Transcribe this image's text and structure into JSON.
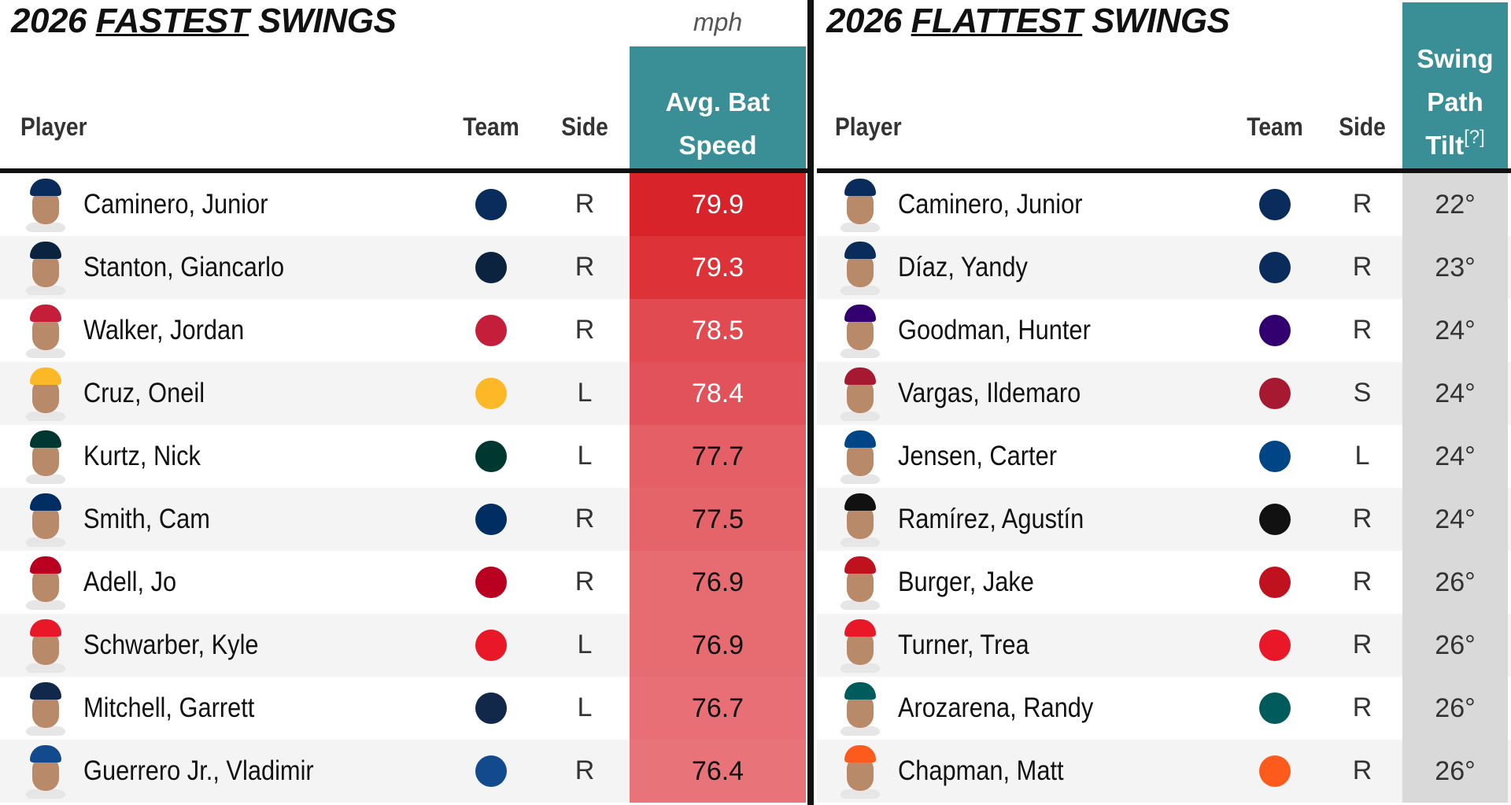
{
  "left": {
    "title": {
      "pre": "2026",
      "em": "FASTEST",
      "post": "SWINGS"
    },
    "unit": "mph",
    "columns": [
      "Player",
      "Team",
      "Side",
      "Avg. Bat Speed"
    ],
    "rows": [
      {
        "player": "Caminero, Junior",
        "team_color": "#092c5c",
        "side": "R",
        "value": "79.9",
        "cell_color": "#d8232a",
        "text_color": "#ffffff"
      },
      {
        "player": "Stanton, Giancarlo",
        "team_color": "#0c2340",
        "side": "R",
        "value": "79.3",
        "cell_color": "#dc3238",
        "text_color": "#ffffff"
      },
      {
        "player": "Walker, Jordan",
        "team_color": "#c41e3a",
        "side": "R",
        "value": "78.5",
        "cell_color": "#e04a50",
        "text_color": "#ffffff"
      },
      {
        "player": "Cruz, Oneil",
        "team_color": "#fdb827",
        "side": "L",
        "value": "78.4",
        "cell_color": "#e1525a",
        "text_color": "#ffffff"
      },
      {
        "player": "Kurtz, Nick",
        "team_color": "#003831",
        "side": "L",
        "value": "77.7",
        "cell_color": "#e45f66",
        "text_color": "#111111"
      },
      {
        "player": "Smith, Cam",
        "team_color": "#002d62",
        "side": "R",
        "value": "77.5",
        "cell_color": "#e5646a",
        "text_color": "#111111"
      },
      {
        "player": "Adell, Jo",
        "team_color": "#ba0021",
        "side": "R",
        "value": "76.9",
        "cell_color": "#e66c72",
        "text_color": "#111111"
      },
      {
        "player": "Schwarber, Kyle",
        "team_color": "#e81828",
        "side": "L",
        "value": "76.9",
        "cell_color": "#e66c72",
        "text_color": "#111111"
      },
      {
        "player": "Mitchell, Garrett",
        "team_color": "#12284b",
        "side": "L",
        "value": "76.7",
        "cell_color": "#e76f75",
        "text_color": "#111111"
      },
      {
        "player": "Guerrero Jr., Vladimir",
        "team_color": "#134a8e",
        "side": "R",
        "value": "76.4",
        "cell_color": "#e87379",
        "text_color": "#111111"
      }
    ]
  },
  "right": {
    "title": {
      "pre": "2026",
      "em": "FLATTEST",
      "post": "SWINGS"
    },
    "columns": [
      "Player",
      "Team",
      "Side",
      "Swing Path Tilt"
    ],
    "column_note": "[?]",
    "rows": [
      {
        "player": "Caminero, Junior",
        "team_color": "#092c5c",
        "side": "R",
        "value": "22°",
        "cell_color": "#d9d9d9",
        "text_color": "#333333"
      },
      {
        "player": "Díaz, Yandy",
        "team_color": "#092c5c",
        "side": "R",
        "value": "23°",
        "cell_color": "#d9d9d9",
        "text_color": "#333333"
      },
      {
        "player": "Goodman, Hunter",
        "team_color": "#33006f",
        "side": "R",
        "value": "24°",
        "cell_color": "#d9d9d9",
        "text_color": "#333333"
      },
      {
        "player": "Vargas, Ildemaro",
        "team_color": "#a71930",
        "side": "S",
        "value": "24°",
        "cell_color": "#d9d9d9",
        "text_color": "#333333"
      },
      {
        "player": "Jensen, Carter",
        "team_color": "#004687",
        "side": "L",
        "value": "24°",
        "cell_color": "#d9d9d9",
        "text_color": "#333333"
      },
      {
        "player": "Ramírez, Agustín",
        "team_color": "#111111",
        "side": "R",
        "value": "24°",
        "cell_color": "#d9d9d9",
        "text_color": "#333333"
      },
      {
        "player": "Burger, Jake",
        "team_color": "#c0111f",
        "side": "R",
        "value": "26°",
        "cell_color": "#d9d9d9",
        "text_color": "#333333"
      },
      {
        "player": "Turner, Trea",
        "team_color": "#e81828",
        "side": "R",
        "value": "26°",
        "cell_color": "#d9d9d9",
        "text_color": "#333333"
      },
      {
        "player": "Arozarena, Randy",
        "team_color": "#005c5c",
        "side": "R",
        "value": "26°",
        "cell_color": "#d9d9d9",
        "text_color": "#333333"
      },
      {
        "player": "Chapman, Matt",
        "team_color": "#fd5a1e",
        "side": "R",
        "value": "26°",
        "cell_color": "#d9d9d9",
        "text_color": "#333333"
      }
    ]
  }
}
